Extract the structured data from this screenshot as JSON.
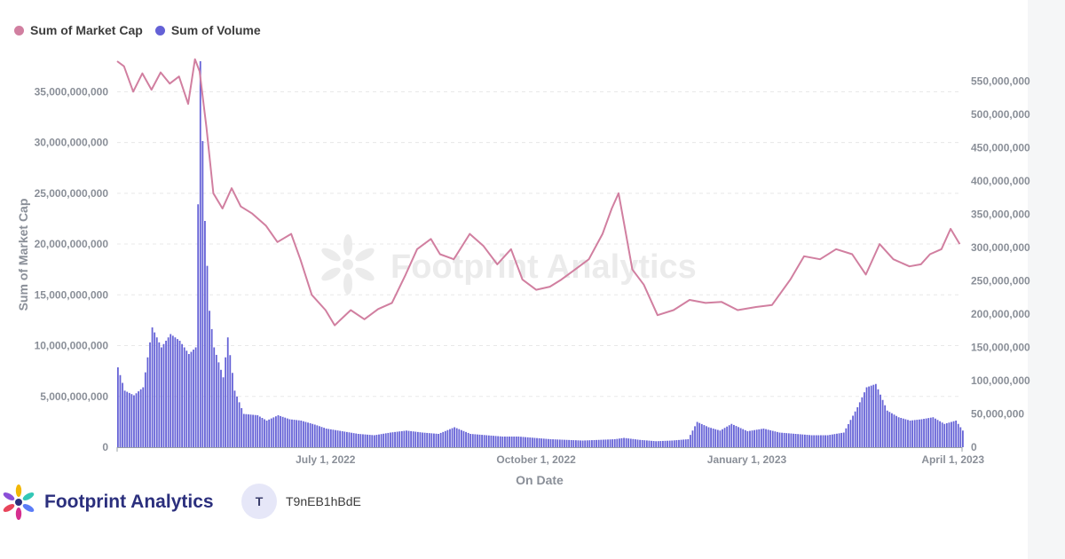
{
  "legend": {
    "market_cap_label": "Sum of Market Cap",
    "volume_label": "Sum of Volume"
  },
  "colors": {
    "market_cap": "#d17fa0",
    "volume": "#6461d6",
    "grid": "#e8e8e8",
    "axis_text": "#8a8f98"
  },
  "watermark": "Footprint Analytics",
  "footer": {
    "brand": "Footprint Analytics",
    "avatar_letter": "T",
    "username": "T9nEB1hBdE"
  },
  "chart_data": {
    "type": "bar+line",
    "xlabel": "On Date",
    "ylabel_left": "Sum of Market Cap",
    "ylabel_right": "",
    "x_tick_labels": [
      "July 1, 2022",
      "October 1, 2022",
      "January 1, 2023",
      "April 1, 2023"
    ],
    "x_tick_dates": [
      "2022-07-01",
      "2022-10-01",
      "2023-01-01",
      "2023-04-01"
    ],
    "x_range": [
      "2022-04-01",
      "2023-04-05"
    ],
    "left_ylim": [
      0,
      38000000000
    ],
    "left_ticks": [
      0,
      5000000000,
      10000000000,
      15000000000,
      20000000000,
      25000000000,
      30000000000,
      35000000000
    ],
    "left_tick_labels": [
      "0",
      "5,000,000,000",
      "10,000,000,000",
      "15,000,000,000",
      "20,000,000,000",
      "25,000,000,000",
      "30,000,000,000",
      "35,000,000,000"
    ],
    "right_ylim": [
      0,
      580000000
    ],
    "right_ticks": [
      0,
      50000000,
      100000000,
      150000000,
      200000000,
      250000000,
      300000000,
      350000000,
      400000000,
      450000000,
      500000000,
      550000000
    ],
    "right_tick_labels": [
      "0",
      "50,000,000",
      "100,000,000",
      "150,000,000",
      "200,000,000",
      "250,000,000",
      "300,000,000",
      "350,000,000",
      "400,000,000",
      "450,000,000",
      "500,000,000",
      "550,000,000"
    ],
    "grid": true,
    "legend_position": "top-left",
    "series": [
      {
        "name": "Sum of Market Cap",
        "type": "line",
        "axis": "left",
        "points": [
          [
            "2022-04-01",
            38000000000
          ],
          [
            "2022-04-04",
            37500000000
          ],
          [
            "2022-04-08",
            35000000000
          ],
          [
            "2022-04-12",
            36800000000
          ],
          [
            "2022-04-16",
            35200000000
          ],
          [
            "2022-04-20",
            36900000000
          ],
          [
            "2022-04-24",
            35800000000
          ],
          [
            "2022-04-28",
            36500000000
          ],
          [
            "2022-05-02",
            33800000000
          ],
          [
            "2022-05-05",
            38200000000
          ],
          [
            "2022-05-07",
            37000000000
          ],
          [
            "2022-05-10",
            31500000000
          ],
          [
            "2022-05-13",
            25000000000
          ],
          [
            "2022-05-17",
            23500000000
          ],
          [
            "2022-05-21",
            25500000000
          ],
          [
            "2022-05-25",
            23700000000
          ],
          [
            "2022-05-30",
            23000000000
          ],
          [
            "2022-06-05",
            21800000000
          ],
          [
            "2022-06-10",
            20200000000
          ],
          [
            "2022-06-16",
            21000000000
          ],
          [
            "2022-06-20",
            18500000000
          ],
          [
            "2022-06-25",
            15000000000
          ],
          [
            "2022-07-01",
            13500000000
          ],
          [
            "2022-07-05",
            12000000000
          ],
          [
            "2022-07-12",
            13500000000
          ],
          [
            "2022-07-18",
            12600000000
          ],
          [
            "2022-07-24",
            13600000000
          ],
          [
            "2022-07-30",
            14200000000
          ],
          [
            "2022-08-05",
            17000000000
          ],
          [
            "2022-08-10",
            19500000000
          ],
          [
            "2022-08-16",
            20500000000
          ],
          [
            "2022-08-20",
            19000000000
          ],
          [
            "2022-08-26",
            18500000000
          ],
          [
            "2022-09-02",
            21000000000
          ],
          [
            "2022-09-08",
            19800000000
          ],
          [
            "2022-09-14",
            18000000000
          ],
          [
            "2022-09-20",
            19500000000
          ],
          [
            "2022-09-25",
            16500000000
          ],
          [
            "2022-10-01",
            15500000000
          ],
          [
            "2022-10-07",
            15800000000
          ],
          [
            "2022-10-12",
            16500000000
          ],
          [
            "2022-10-18",
            17500000000
          ],
          [
            "2022-10-24",
            18500000000
          ],
          [
            "2022-10-30",
            21000000000
          ],
          [
            "2022-11-03",
            23500000000
          ],
          [
            "2022-11-06",
            25000000000
          ],
          [
            "2022-11-08",
            22500000000
          ],
          [
            "2022-11-12",
            17500000000
          ],
          [
            "2022-11-17",
            16000000000
          ],
          [
            "2022-11-23",
            13000000000
          ],
          [
            "2022-11-30",
            13500000000
          ],
          [
            "2022-12-07",
            14500000000
          ],
          [
            "2022-12-14",
            14200000000
          ],
          [
            "2022-12-21",
            14300000000
          ],
          [
            "2022-12-28",
            13500000000
          ],
          [
            "2023-01-05",
            13800000000
          ],
          [
            "2023-01-12",
            14000000000
          ],
          [
            "2023-01-20",
            16500000000
          ],
          [
            "2023-01-26",
            18800000000
          ],
          [
            "2023-02-02",
            18500000000
          ],
          [
            "2023-02-09",
            19500000000
          ],
          [
            "2023-02-16",
            19000000000
          ],
          [
            "2023-02-22",
            17000000000
          ],
          [
            "2023-02-28",
            20000000000
          ],
          [
            "2023-03-06",
            18500000000
          ],
          [
            "2023-03-13",
            17800000000
          ],
          [
            "2023-03-18",
            18000000000
          ],
          [
            "2023-03-22",
            19000000000
          ],
          [
            "2023-03-27",
            19500000000
          ],
          [
            "2023-03-31",
            21500000000
          ],
          [
            "2023-04-04",
            20000000000
          ]
        ]
      },
      {
        "name": "Sum of Volume",
        "type": "bar",
        "axis": "right",
        "points": [
          [
            "2022-04-01",
            120000000
          ],
          [
            "2022-04-04",
            85000000
          ],
          [
            "2022-04-08",
            78000000
          ],
          [
            "2022-04-12",
            90000000
          ],
          [
            "2022-04-16",
            180000000
          ],
          [
            "2022-04-20",
            150000000
          ],
          [
            "2022-04-24",
            170000000
          ],
          [
            "2022-04-28",
            160000000
          ],
          [
            "2022-05-02",
            140000000
          ],
          [
            "2022-05-05",
            150000000
          ],
          [
            "2022-05-07",
            580000000
          ],
          [
            "2022-05-09",
            340000000
          ],
          [
            "2022-05-11",
            205000000
          ],
          [
            "2022-05-13",
            150000000
          ],
          [
            "2022-05-17",
            105000000
          ],
          [
            "2022-05-19",
            165000000
          ],
          [
            "2022-05-22",
            85000000
          ],
          [
            "2022-05-26",
            50000000
          ],
          [
            "2022-06-01",
            48000000
          ],
          [
            "2022-06-05",
            40000000
          ],
          [
            "2022-06-10",
            48000000
          ],
          [
            "2022-06-15",
            42000000
          ],
          [
            "2022-06-20",
            40000000
          ],
          [
            "2022-06-26",
            34000000
          ],
          [
            "2022-07-01",
            28000000
          ],
          [
            "2022-07-08",
            24000000
          ],
          [
            "2022-07-15",
            20000000
          ],
          [
            "2022-07-22",
            18000000
          ],
          [
            "2022-07-29",
            22000000
          ],
          [
            "2022-08-05",
            25000000
          ],
          [
            "2022-08-12",
            22000000
          ],
          [
            "2022-08-19",
            20000000
          ],
          [
            "2022-08-26",
            30000000
          ],
          [
            "2022-09-02",
            20000000
          ],
          [
            "2022-09-09",
            18000000
          ],
          [
            "2022-09-16",
            16000000
          ],
          [
            "2022-09-23",
            16000000
          ],
          [
            "2022-09-30",
            14000000
          ],
          [
            "2022-10-07",
            12000000
          ],
          [
            "2022-10-14",
            11000000
          ],
          [
            "2022-10-21",
            10000000
          ],
          [
            "2022-10-28",
            11000000
          ],
          [
            "2022-11-04",
            12000000
          ],
          [
            "2022-11-08",
            14000000
          ],
          [
            "2022-11-15",
            11000000
          ],
          [
            "2022-11-22",
            9000000
          ],
          [
            "2022-11-29",
            10000000
          ],
          [
            "2022-12-06",
            12000000
          ],
          [
            "2022-12-10",
            38000000
          ],
          [
            "2022-12-15",
            30000000
          ],
          [
            "2022-12-20",
            25000000
          ],
          [
            "2022-12-25",
            35000000
          ],
          [
            "2023-01-01",
            24000000
          ],
          [
            "2023-01-08",
            28000000
          ],
          [
            "2023-01-15",
            22000000
          ],
          [
            "2023-01-22",
            20000000
          ],
          [
            "2023-01-29",
            18000000
          ],
          [
            "2023-02-05",
            18000000
          ],
          [
            "2023-02-12",
            22000000
          ],
          [
            "2023-02-18",
            60000000
          ],
          [
            "2023-02-22",
            90000000
          ],
          [
            "2023-02-26",
            95000000
          ],
          [
            "2023-03-03",
            55000000
          ],
          [
            "2023-03-08",
            45000000
          ],
          [
            "2023-03-13",
            40000000
          ],
          [
            "2023-03-18",
            42000000
          ],
          [
            "2023-03-23",
            45000000
          ],
          [
            "2023-03-28",
            35000000
          ],
          [
            "2023-04-02",
            40000000
          ],
          [
            "2023-04-05",
            25000000
          ]
        ]
      }
    ]
  }
}
